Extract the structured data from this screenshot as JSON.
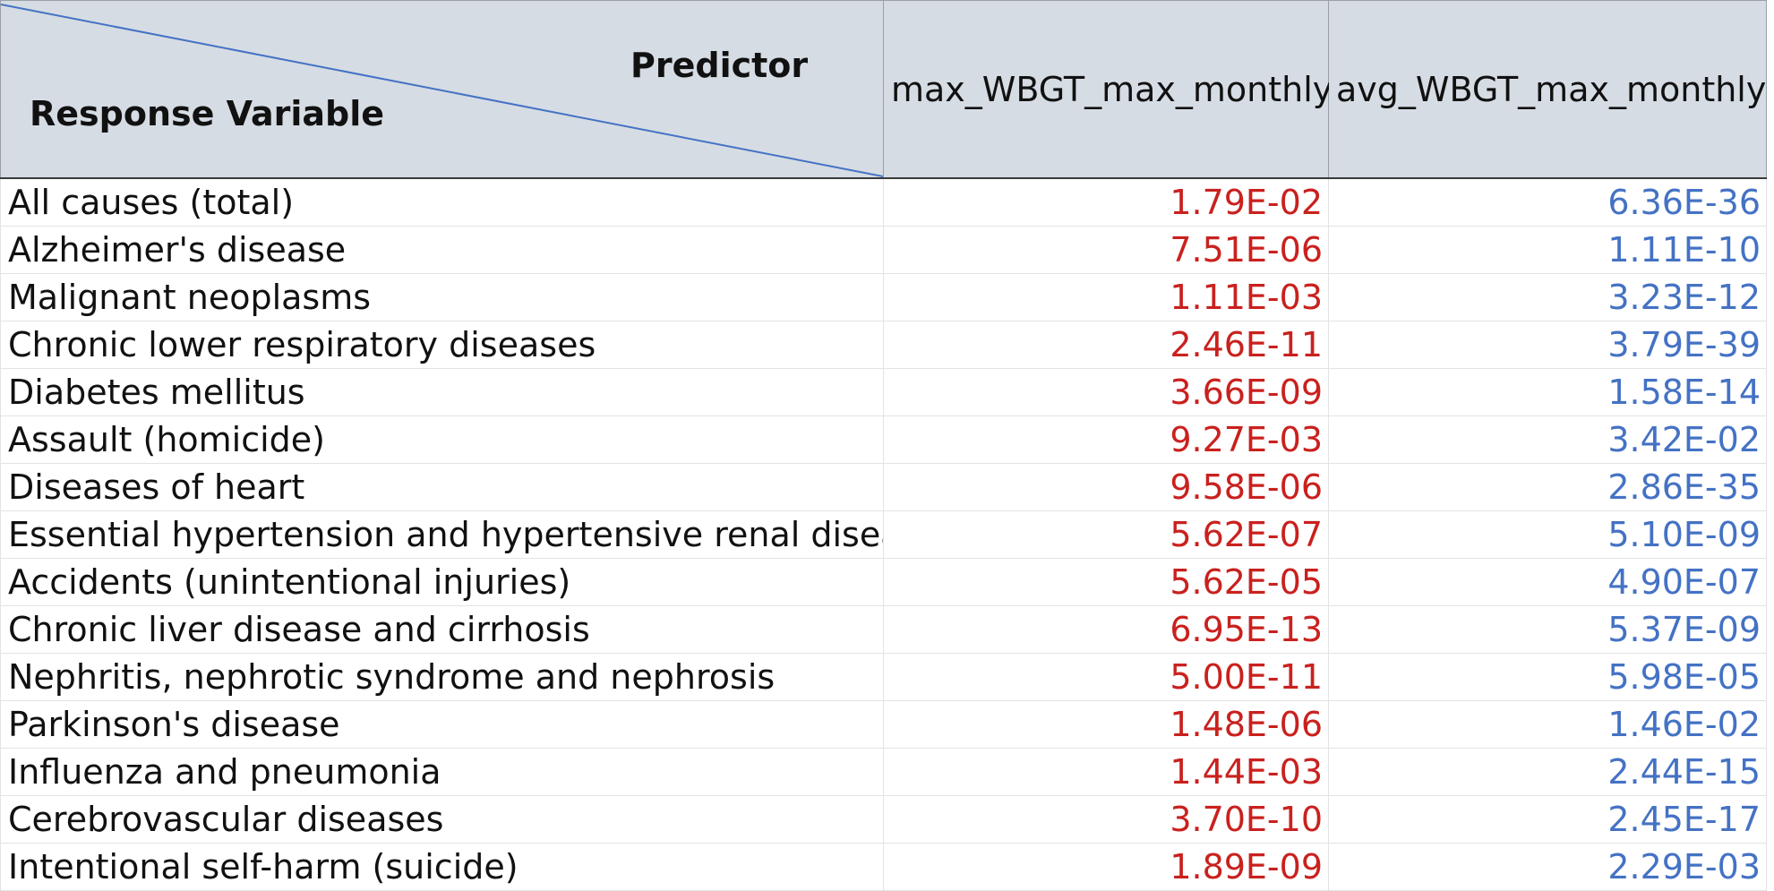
{
  "header": {
    "predictor_label": "Predictor",
    "response_label": "Response Variable",
    "columns": [
      "max_WBGT_max_monthly",
      "avg_WBGT_max_monthly"
    ]
  },
  "colors": {
    "header_bg": "#d6dce4",
    "max_value_color": "#c9211e",
    "avg_value_color": "#4472c4",
    "diagonal_line": "#4472c4"
  },
  "rows": [
    {
      "label": "All causes (total)",
      "max": "1.79E-02",
      "avg": "6.36E-36"
    },
    {
      "label": "Alzheimer's disease",
      "max": "7.51E-06",
      "avg": "1.11E-10"
    },
    {
      "label": "Malignant neoplasms",
      "max": "1.11E-03",
      "avg": "3.23E-12"
    },
    {
      "label": "Chronic lower respiratory diseases",
      "max": "2.46E-11",
      "avg": "3.79E-39"
    },
    {
      "label": "Diabetes mellitus",
      "max": "3.66E-09",
      "avg": "1.58E-14"
    },
    {
      "label": "Assault (homicide)",
      "max": "9.27E-03",
      "avg": "3.42E-02"
    },
    {
      "label": "Diseases of heart",
      "max": "9.58E-06",
      "avg": "2.86E-35"
    },
    {
      "label": "Essential hypertension and hypertensive renal disease",
      "max": "5.62E-07",
      "avg": "5.10E-09"
    },
    {
      "label": "Accidents (unintentional injuries)",
      "max": "5.62E-05",
      "avg": "4.90E-07"
    },
    {
      "label": "Chronic liver disease and cirrhosis",
      "max": "6.95E-13",
      "avg": "5.37E-09"
    },
    {
      "label": "Nephritis, nephrotic syndrome and nephrosis",
      "max": "5.00E-11",
      "avg": "5.98E-05"
    },
    {
      "label": "Parkinson's disease",
      "max": "1.48E-06",
      "avg": "1.46E-02"
    },
    {
      "label": "Influenza and pneumonia",
      "max": "1.44E-03",
      "avg": "2.44E-15"
    },
    {
      "label": "Cerebrovascular diseases",
      "max": "3.70E-10",
      "avg": "2.45E-17"
    },
    {
      "label": "Intentional self-harm (suicide)",
      "max": "1.89E-09",
      "avg": "2.29E-03"
    }
  ]
}
